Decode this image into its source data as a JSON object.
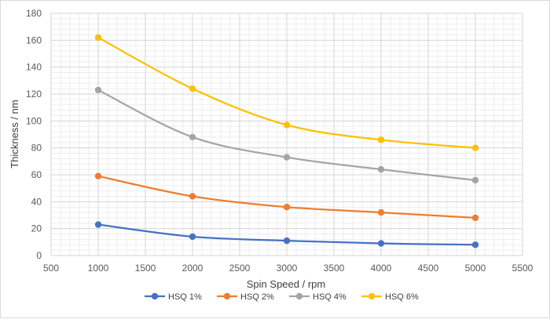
{
  "chart_data": {
    "type": "line",
    "title": "",
    "xlabel": "Spin Speed / rpm",
    "ylabel": "Thickness / nm",
    "xlim": [
      500,
      5500
    ],
    "ylim": [
      0,
      180
    ],
    "x_ticks": [
      500,
      1000,
      1500,
      2000,
      2500,
      3000,
      3500,
      4000,
      4500,
      5000,
      5500
    ],
    "y_ticks": [
      0,
      20,
      40,
      60,
      80,
      100,
      120,
      140,
      160,
      180
    ],
    "grid": true,
    "smooth": true,
    "legend_position": "bottom",
    "x": [
      1000,
      2000,
      3000,
      4000,
      5000
    ],
    "series": [
      {
        "name": "HSQ 1%",
        "color": "#4472c4",
        "values": [
          23,
          14,
          11,
          9,
          8
        ]
      },
      {
        "name": "HSQ 2%",
        "color": "#ed7d31",
        "values": [
          59,
          44,
          36,
          32,
          28
        ]
      },
      {
        "name": "HSQ 4%",
        "color": "#a5a5a5",
        "values": [
          123,
          88,
          73,
          64,
          56
        ]
      },
      {
        "name": "HSQ 6%",
        "color": "#ffc000",
        "values": [
          162,
          124,
          97,
          86,
          80
        ]
      }
    ]
  }
}
